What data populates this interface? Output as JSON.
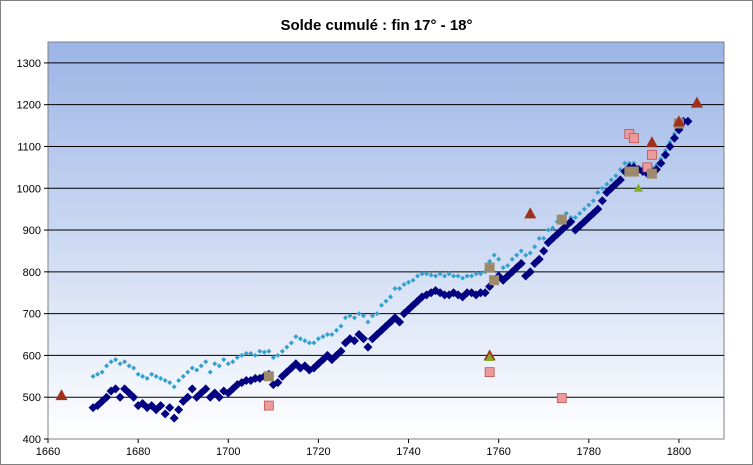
{
  "chart_data": {
    "type": "scatter",
    "title": "Solde cumulé : fin 17° - 18°",
    "xlim": [
      1660,
      1810
    ],
    "ylim": [
      400,
      1350
    ],
    "x_ticks": [
      "1660",
      "1680",
      "1700",
      "1720",
      "1740",
      "1760",
      "1780",
      "1800"
    ],
    "y_ticks": [
      "400",
      "500",
      "600",
      "700",
      "800",
      "900",
      "1000",
      "1100",
      "1200",
      "1300"
    ],
    "grid": "horizontal",
    "colors": {
      "plot_top": "#9bb4e6",
      "plot_bottom": "#ffffff",
      "dark_series": "#000080",
      "light_series": "#33a0d0",
      "pink_square": "#ee9a9a",
      "tan_square": "#9c8a6a",
      "red_triangle": "#a0301c",
      "green_triangle": "#80b020"
    },
    "series": [
      {
        "marker": "diamond",
        "color": "#000080",
        "x": [
          1670,
          1671,
          1672,
          1673,
          1674,
          1675,
          1676,
          1677,
          1678,
          1679,
          1680,
          1681,
          1682,
          1683,
          1684,
          1685,
          1686,
          1687,
          1688,
          1689,
          1690,
          1691,
          1692,
          1693,
          1694,
          1695,
          1696,
          1697,
          1698,
          1699,
          1700,
          1701,
          1702,
          1703,
          1704,
          1705,
          1706,
          1707,
          1708,
          1709,
          1710,
          1711,
          1712,
          1713,
          1714,
          1715,
          1716,
          1717,
          1718,
          1719,
          1720,
          1721,
          1722,
          1723,
          1724,
          1725,
          1726,
          1727,
          1728,
          1729,
          1730,
          1731,
          1732,
          1733,
          1734,
          1735,
          1736,
          1737,
          1738,
          1739,
          1740,
          1741,
          1742,
          1743,
          1744,
          1745,
          1746,
          1747,
          1748,
          1749,
          1750,
          1751,
          1752,
          1753,
          1754,
          1755,
          1756,
          1757,
          1758,
          1759,
          1760,
          1761,
          1762,
          1763,
          1764,
          1765,
          1766,
          1767,
          1768,
          1769,
          1770,
          1771,
          1772,
          1773,
          1774,
          1775,
          1776,
          1777,
          1778,
          1779,
          1780,
          1781,
          1782,
          1783,
          1784,
          1785,
          1786,
          1787,
          1788,
          1789,
          1790,
          1791,
          1792,
          1793,
          1794,
          1795,
          1796,
          1797,
          1798,
          1799,
          1800,
          1801,
          1802
        ],
        "y": [
          475,
          480,
          490,
          500,
          515,
          520,
          500,
          520,
          510,
          500,
          480,
          485,
          475,
          480,
          470,
          480,
          460,
          475,
          450,
          470,
          490,
          500,
          520,
          500,
          510,
          520,
          500,
          510,
          500,
          515,
          510,
          520,
          530,
          535,
          540,
          540,
          545,
          545,
          550,
          555,
          530,
          535,
          550,
          560,
          570,
          580,
          570,
          575,
          565,
          570,
          580,
          590,
          600,
          590,
          600,
          610,
          630,
          640,
          635,
          650,
          640,
          620,
          640,
          650,
          660,
          670,
          680,
          690,
          680,
          700,
          710,
          720,
          730,
          740,
          745,
          750,
          755,
          750,
          745,
          745,
          750,
          745,
          740,
          750,
          750,
          745,
          750,
          750,
          765,
          780,
          790,
          780,
          790,
          800,
          810,
          820,
          790,
          800,
          820,
          830,
          850,
          870,
          880,
          890,
          900,
          910,
          920,
          900,
          910,
          920,
          930,
          940,
          950,
          970,
          990,
          1000,
          1010,
          1020,
          1040,
          1050,
          1050,
          1045,
          1040,
          1035,
          1040,
          1045,
          1060,
          1080,
          1100,
          1120,
          1140,
          1160,
          1160
        ]
      },
      {
        "marker": "small-diamond",
        "color": "#33a0d0",
        "x": [
          1670,
          1671,
          1672,
          1673,
          1674,
          1675,
          1676,
          1677,
          1678,
          1679,
          1680,
          1681,
          1682,
          1683,
          1684,
          1685,
          1686,
          1687,
          1688,
          1689,
          1690,
          1691,
          1692,
          1693,
          1694,
          1695,
          1696,
          1697,
          1698,
          1699,
          1700,
          1701,
          1702,
          1703,
          1704,
          1705,
          1706,
          1707,
          1708,
          1709,
          1710,
          1711,
          1712,
          1713,
          1714,
          1715,
          1716,
          1717,
          1718,
          1719,
          1720,
          1721,
          1722,
          1723,
          1724,
          1725,
          1726,
          1727,
          1728,
          1729,
          1730,
          1731,
          1732,
          1733,
          1734,
          1735,
          1736,
          1737,
          1738,
          1739,
          1740,
          1741,
          1742,
          1743,
          1744,
          1745,
          1746,
          1747,
          1748,
          1749,
          1750,
          1751,
          1752,
          1753,
          1754,
          1755,
          1756,
          1757,
          1758,
          1759,
          1760,
          1761,
          1762,
          1763,
          1764,
          1765,
          1766,
          1767,
          1768,
          1769,
          1770,
          1771,
          1772,
          1773,
          1774,
          1775,
          1776,
          1777,
          1778,
          1779,
          1780,
          1781,
          1782,
          1783,
          1784,
          1785,
          1786,
          1787,
          1788,
          1789,
          1790,
          1791,
          1792,
          1793,
          1794,
          1795,
          1796,
          1797,
          1798,
          1799,
          1800,
          1801,
          1802
        ],
        "y": [
          550,
          555,
          560,
          575,
          585,
          590,
          580,
          585,
          575,
          570,
          555,
          550,
          545,
          555,
          550,
          545,
          540,
          535,
          525,
          540,
          550,
          560,
          570,
          565,
          575,
          585,
          560,
          580,
          575,
          590,
          580,
          585,
          595,
          600,
          605,
          605,
          600,
          610,
          608,
          610,
          595,
          600,
          610,
          620,
          630,
          645,
          640,
          635,
          630,
          630,
          640,
          645,
          650,
          650,
          660,
          670,
          690,
          695,
          690,
          700,
          695,
          680,
          695,
          700,
          720,
          730,
          740,
          760,
          760,
          770,
          775,
          780,
          790,
          795,
          795,
          792,
          790,
          795,
          790,
          795,
          790,
          790,
          785,
          790,
          790,
          795,
          795,
          800,
          825,
          840,
          830,
          810,
          815,
          830,
          840,
          850,
          840,
          845,
          860,
          880,
          880,
          900,
          905,
          920,
          930,
          940,
          930,
          930,
          940,
          950,
          960,
          970,
          990,
          1000,
          1010,
          1020,
          1030,
          1045,
          1060,
          1060,
          1060,
          1050,
          1050,
          1045,
          1050,
          1055,
          1070,
          1090,
          1110,
          1130,
          1150,
          1160,
          1165
        ]
      },
      {
        "marker": "pink-square",
        "color": "#ee9a9a",
        "x": [
          1709,
          1758,
          1774,
          1789,
          1790,
          1793,
          1794
        ],
        "y": [
          480,
          560,
          498,
          1130,
          1120,
          1050,
          1080
        ]
      },
      {
        "marker": "tan-square",
        "color": "#9c8a6a",
        "x": [
          1709,
          1758,
          1759,
          1774,
          1789,
          1790,
          1794,
          1800
        ],
        "y": [
          550,
          810,
          780,
          925,
          1040,
          1040,
          1035,
          1155
        ]
      },
      {
        "marker": "red-triangle",
        "color": "#a0301c",
        "x": [
          1663,
          1758,
          1767,
          1794,
          1800,
          1804
        ],
        "y": [
          505,
          600,
          940,
          1110,
          1160,
          1205
        ]
      },
      {
        "marker": "green-triangle",
        "color": "#80b020",
        "x": [
          1758,
          1791
        ],
        "y": [
          595,
          1000
        ]
      }
    ]
  }
}
